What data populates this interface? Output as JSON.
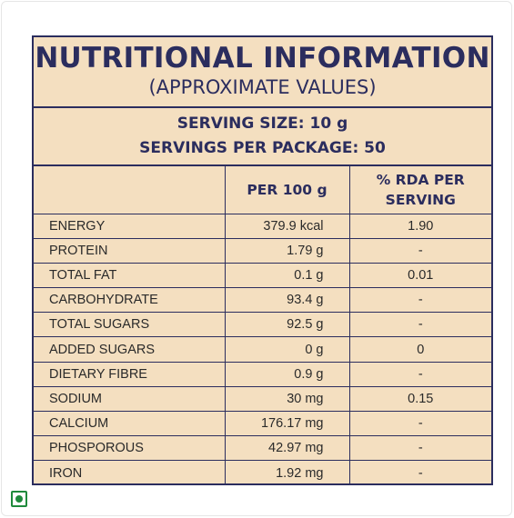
{
  "label": {
    "title": "NUTRITIONAL INFORMATION",
    "subtitle": "(APPROXIMATE VALUES)",
    "serving_size": "SERVING SIZE: 10 g",
    "servings_per_package": "SERVINGS PER PACKAGE: 50",
    "headers": {
      "nutrient": "",
      "per_100g": "PER 100 g",
      "rda_line1": "% RDA PER",
      "rda_line2": "SERVING"
    },
    "rows": [
      {
        "name": "ENERGY",
        "per_100g": "379.9 kcal",
        "rda": "1.90"
      },
      {
        "name": "PROTEIN",
        "per_100g": "1.79 g",
        "rda": "-"
      },
      {
        "name": "TOTAL FAT",
        "per_100g": "0.1 g",
        "rda": "0.01"
      },
      {
        "name": "CARBOHYDRATE",
        "per_100g": "93.4 g",
        "rda": "-"
      },
      {
        "name": "TOTAL SUGARS",
        "per_100g": "92.5 g",
        "rda": "-"
      },
      {
        "name": "ADDED SUGARS",
        "per_100g": "0 g",
        "rda": "0"
      },
      {
        "name": "DIETARY FIBRE",
        "per_100g": "0.9 g",
        "rda": "-"
      },
      {
        "name": "SODIUM",
        "per_100g": "30 mg",
        "rda": "0.15"
      },
      {
        "name": "CALCIUM",
        "per_100g": "176.17 mg",
        "rda": "-"
      },
      {
        "name": "PHOSPOROUS",
        "per_100g": "42.97 mg",
        "rda": "-"
      },
      {
        "name": "IRON",
        "per_100g": "1.92 mg",
        "rda": "-"
      }
    ]
  },
  "colors": {
    "panel_background": "#f4dfc0",
    "border_and_heading": "#2b2d5e",
    "veg_mark": "#1f8a3c"
  },
  "icons": {
    "veg_badge": "veg-indicator-icon"
  }
}
